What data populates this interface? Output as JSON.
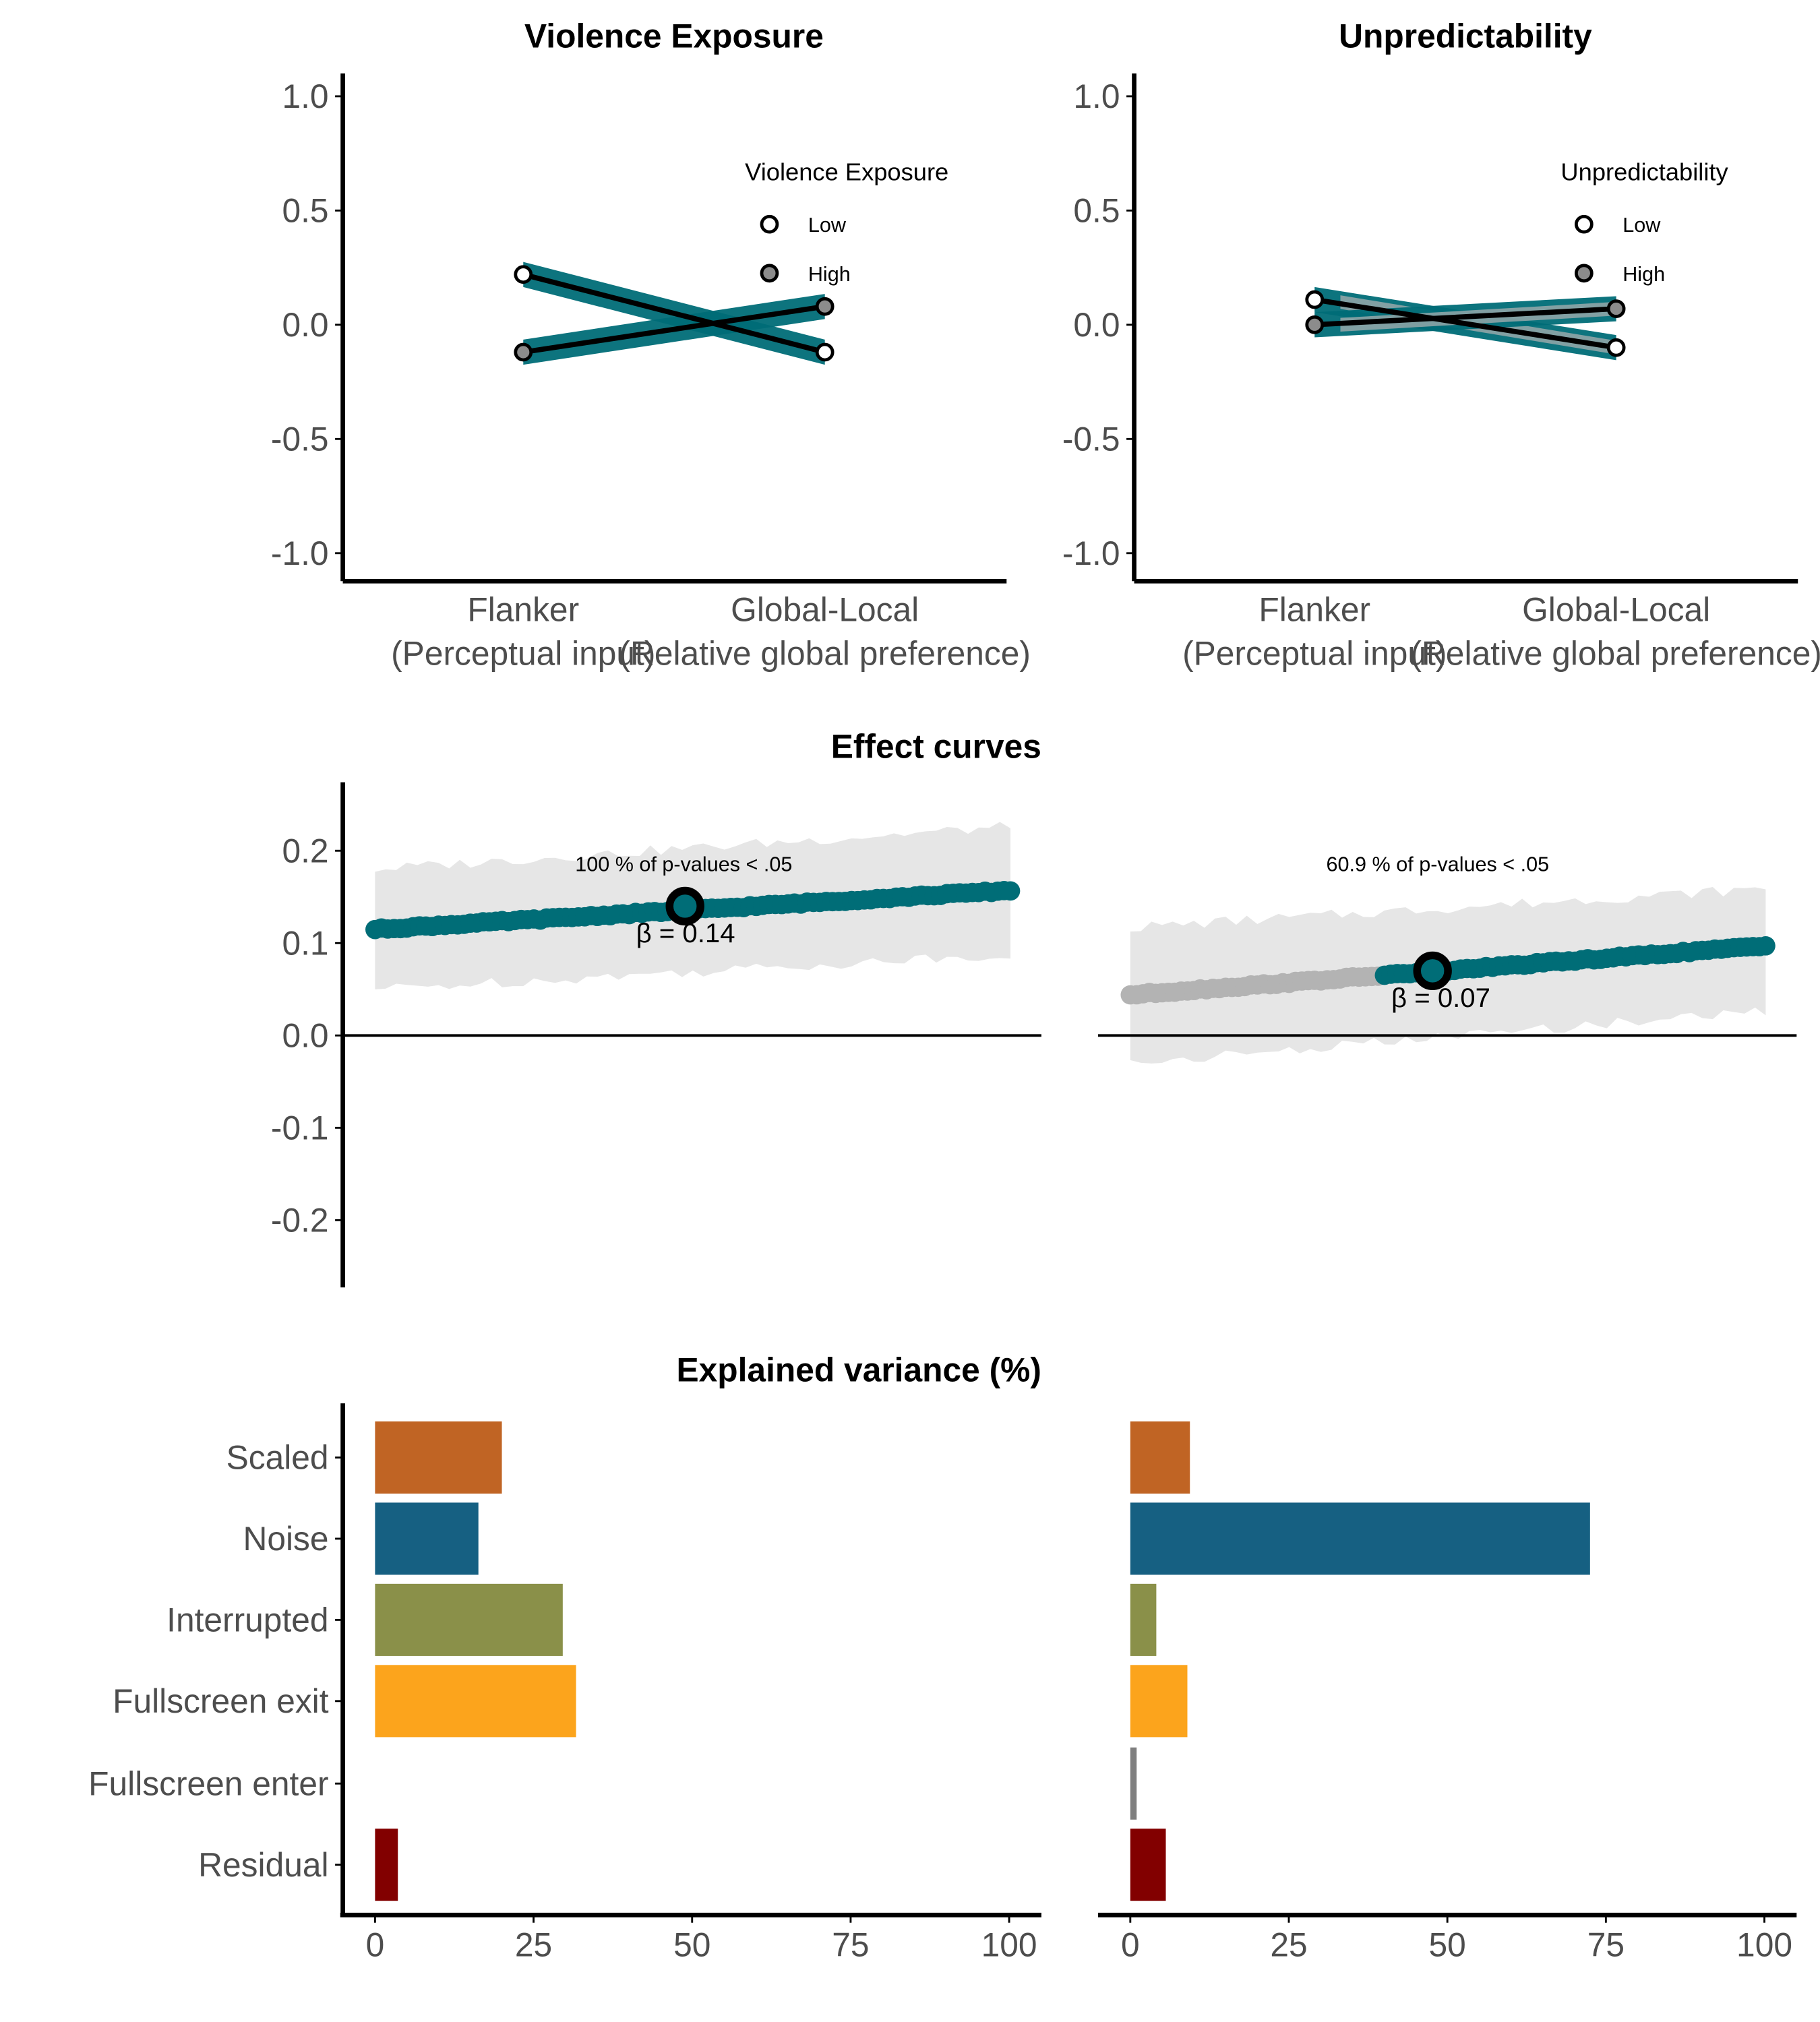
{
  "colors": {
    "teal": "#006d77",
    "grey_band": "#e6e6e6",
    "grey_point": "#b3b3b3",
    "open_point": "#ffffff",
    "filled_point": "#8c8c8c",
    "axis": "#000000",
    "tick_text": "#4d4d4d"
  },
  "chart_data": [
    {
      "type": "line",
      "title": "Violence Exposure",
      "categories": [
        "Flanker\n(Perceptual input)",
        "Global-Local\n(Relative global preference)"
      ],
      "ylim": [
        -1.1,
        1.1
      ],
      "yticks": [
        -1.0,
        -0.5,
        0.0,
        0.5,
        1.0
      ],
      "ytick_labels": [
        "-1.0",
        "-0.5",
        "0.0",
        "0.5",
        "1.0"
      ],
      "legend": {
        "title": "Violence Exposure",
        "position": "top-right"
      },
      "series": [
        {
          "name": "Low",
          "values": [
            0.22,
            -0.12
          ],
          "marker": "open"
        },
        {
          "name": "High",
          "values": [
            -0.12,
            0.08
          ],
          "marker": "filled"
        }
      ]
    },
    {
      "type": "line",
      "title": "Unpredictability",
      "categories": [
        "Flanker\n(Perceptual input)",
        "Global-Local\n(Relative global preference)"
      ],
      "ylim": [
        -1.1,
        1.1
      ],
      "yticks": [
        -1.0,
        -0.5,
        0.0,
        0.5,
        1.0
      ],
      "ytick_labels": [
        "-1.0",
        "-0.5",
        "0.0",
        "0.5",
        "1.0"
      ],
      "legend": {
        "title": "Unpredictability",
        "position": "top-right"
      },
      "series": [
        {
          "name": "Low",
          "values": [
            0.11,
            -0.1
          ],
          "marker": "open"
        },
        {
          "name": "High",
          "values": [
            0.0,
            0.07
          ],
          "marker": "filled"
        }
      ]
    },
    {
      "type": "scatter",
      "title": "Effect curves",
      "xlim": [
        0,
        100
      ],
      "ylim": [
        -0.27,
        0.27
      ],
      "yticks": [
        -0.2,
        -0.1,
        0.0,
        0.1,
        0.2
      ],
      "ytick_labels": [
        "-0.2",
        "-0.1",
        "0.0",
        "0.1",
        "0.2"
      ],
      "curve": {
        "start": 0.115,
        "end": 0.157,
        "significant_from": 0,
        "median_x": 50
      },
      "band": {
        "lower_start": 0.05,
        "lower_end": 0.088,
        "upper_start": 0.18,
        "upper_end": 0.226
      },
      "annotation": "100 % of p-values < .05",
      "beta_label": "β = 0.14",
      "median_beta": 0.14
    },
    {
      "type": "scatter",
      "title": "",
      "xlim": [
        0,
        100
      ],
      "ylim": [
        -0.27,
        0.27
      ],
      "curve": {
        "start": 0.044,
        "end": 0.097,
        "significant_from": 40,
        "median_x": 50
      },
      "band": {
        "lower_start": -0.03,
        "lower_end": 0.027,
        "upper_start": 0.117,
        "upper_end": 0.159
      },
      "annotation": "60.9 % of p-values < .05",
      "beta_label": "β = 0.07",
      "median_beta": 0.07
    },
    {
      "type": "bar",
      "title": "Explained variance (%)",
      "orientation": "horizontal",
      "categories": [
        "Scaled",
        "Noise",
        "Interrupted",
        "Fullscreen exit",
        "Fullscreen enter",
        "Residual"
      ],
      "values": [
        20,
        16.3,
        29.6,
        31.7,
        0,
        3.6
      ],
      "bar_colors": [
        "#c06424",
        "#166082",
        "#8a9049",
        "#fca41c",
        "#7f7f7f",
        "#820000"
      ],
      "xlim": [
        -5,
        105
      ],
      "xticks": [
        0,
        25,
        50,
        75,
        100
      ],
      "xtick_labels": [
        "0",
        "25",
        "50",
        "75",
        "100"
      ]
    },
    {
      "type": "bar",
      "title": "",
      "orientation": "horizontal",
      "categories": [
        "Scaled",
        "Noise",
        "Interrupted",
        "Fullscreen exit",
        "Fullscreen enter",
        "Residual"
      ],
      "values": [
        9.4,
        72.5,
        4.1,
        9.0,
        1.0,
        5.6
      ],
      "bar_colors": [
        "#c06424",
        "#166082",
        "#8a9049",
        "#fca41c",
        "#7f7f7f",
        "#820000"
      ],
      "xlim": [
        -5,
        105
      ],
      "xticks": [
        0,
        25,
        50,
        75,
        100
      ],
      "xtick_labels": [
        "0",
        "25",
        "50",
        "75",
        "100"
      ]
    }
  ]
}
